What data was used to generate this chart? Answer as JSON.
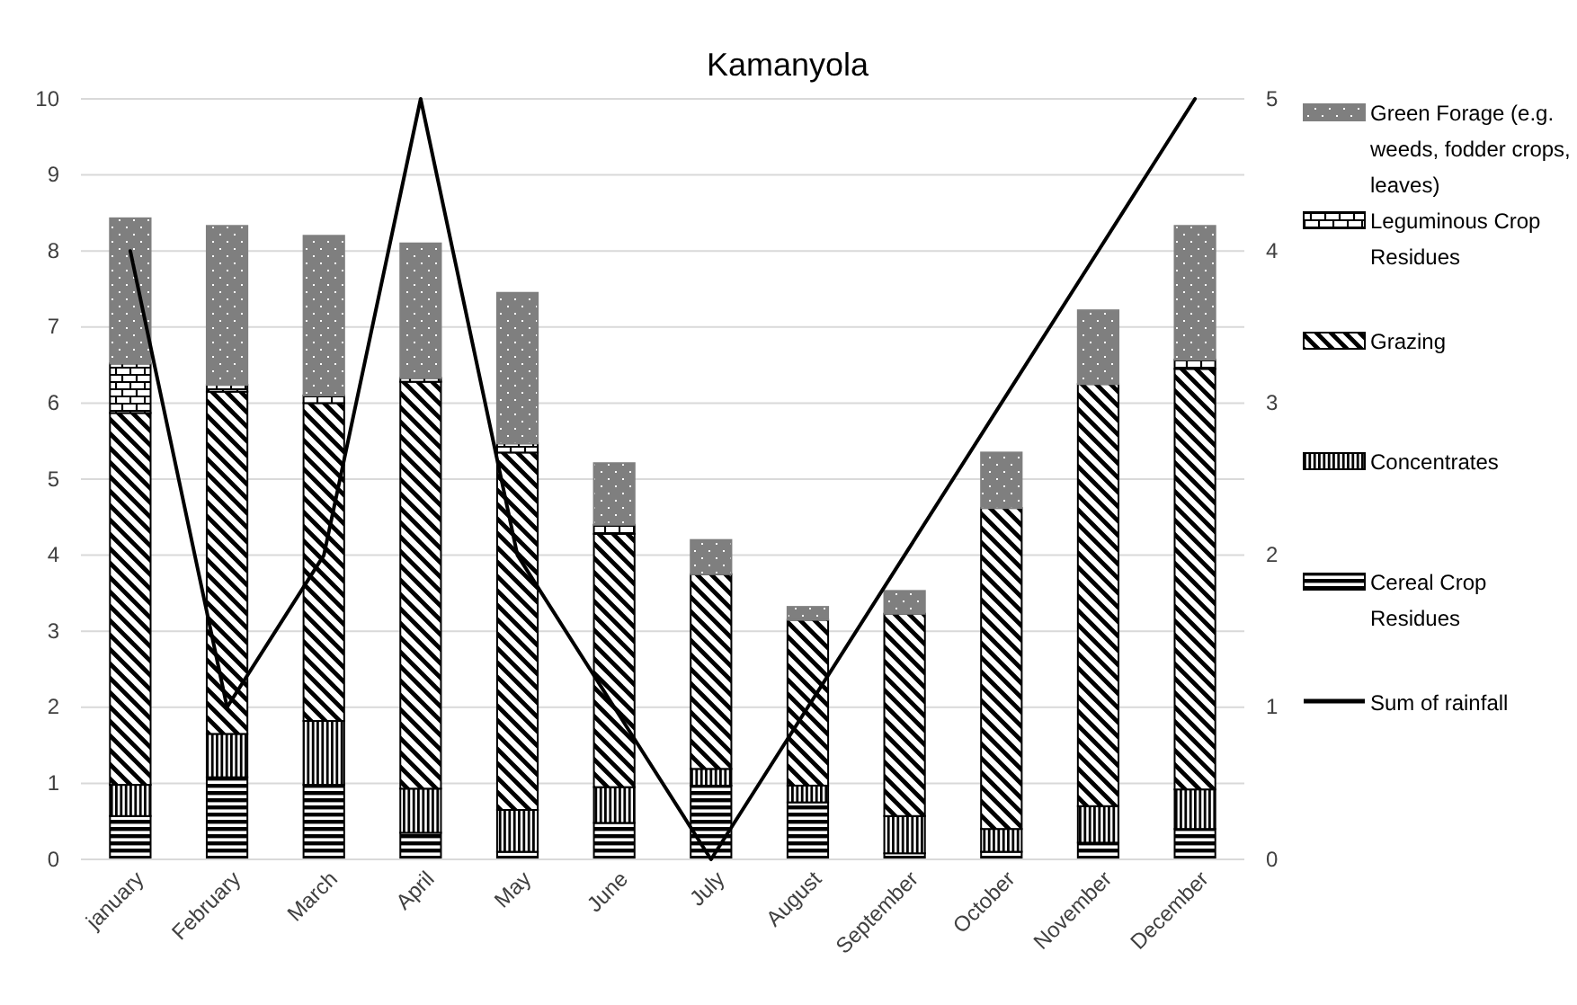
{
  "chart_data": {
    "type": "bar",
    "title": "Kamanyola",
    "stacked": true,
    "categories": [
      "january",
      "February",
      "March",
      "April",
      "May",
      "June",
      "July",
      "August",
      "September",
      "October",
      "November",
      "December"
    ],
    "series": [
      {
        "name": "Cereal Crop Residues",
        "color": "#000000",
        "values": [
          0.57,
          1.08,
          0.98,
          0.35,
          0.1,
          0.48,
          0.97,
          0.75,
          0.08,
          0.1,
          0.22,
          0.4
        ]
      },
      {
        "name": "Concentrates",
        "color": "#000000",
        "values": [
          0.41,
          0.57,
          0.84,
          0.58,
          0.55,
          0.47,
          0.22,
          0.22,
          0.49,
          0.3,
          0.48,
          0.52
        ]
      },
      {
        "name": "Grazing",
        "color": "#000000",
        "values": [
          4.89,
          4.5,
          4.18,
          5.35,
          4.7,
          3.33,
          2.56,
          2.18,
          2.66,
          4.22,
          5.55,
          5.53
        ]
      },
      {
        "name": "Leguminous Crop Residues",
        "color": "#000000",
        "values": [
          0.65,
          0.09,
          0.1,
          0.05,
          0.12,
          0.12,
          0,
          0,
          0,
          0,
          0,
          0.12
        ]
      },
      {
        "name": "Green Forage (e.g. weeds, fodder crops, leaves)",
        "color": "#7f7f7f",
        "values": [
          1.91,
          2.09,
          2.1,
          1.77,
          1.98,
          0.81,
          0.45,
          0.17,
          0.3,
          0.73,
          0.97,
          1.76
        ]
      },
      {
        "name": "Sum of rainfall",
        "type": "line",
        "axis": "y2",
        "color": "#000000",
        "values": [
          4,
          1,
          2,
          5,
          2,
          1,
          0,
          1,
          2,
          3,
          4,
          5
        ]
      }
    ],
    "ylim": [
      0,
      10
    ],
    "yticks": [
      0,
      1,
      2,
      3,
      4,
      5,
      6,
      7,
      8,
      9,
      10
    ],
    "y2lim": [
      0,
      5
    ],
    "y2ticks": [
      0,
      1,
      2,
      3,
      4,
      5
    ],
    "grid": "y",
    "legend": "right",
    "line_style": "solid",
    "marker": "none"
  }
}
